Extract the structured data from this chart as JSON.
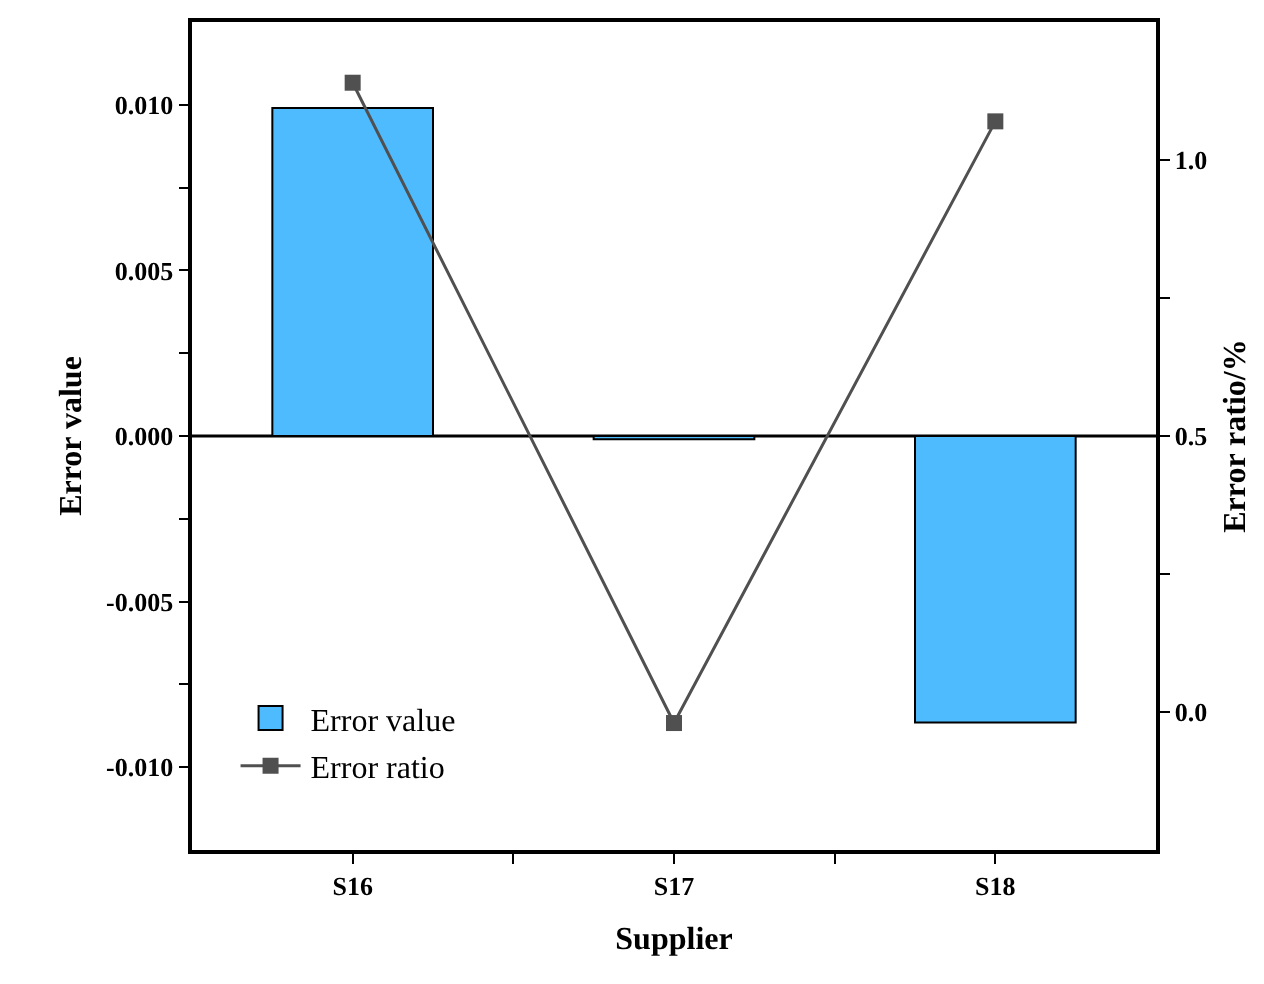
{
  "chart_data": {
    "type": "bar",
    "xlabel": "Supplier",
    "ylabel": "Error value",
    "y2label": "Error ratio/%",
    "categories": [
      "S16",
      "S17",
      "S18"
    ],
    "series": [
      {
        "name": "Error value",
        "color": "#4fbbff",
        "values": [
          0.0099,
          -0.0001,
          -0.00865
        ]
      },
      {
        "name": "Error ratio",
        "type": "line",
        "axis": "y2",
        "color": "#505050",
        "values": [
          1.14,
          -0.02,
          1.07
        ]
      }
    ],
    "ylim": [
      -0.0125,
      0.0125
    ],
    "yticks": [
      {
        "value": -0.01,
        "label": "-0.010"
      },
      {
        "value": -0.0075,
        "label": null
      },
      {
        "value": -0.005,
        "label": "-0.005"
      },
      {
        "value": -0.0025,
        "label": null
      },
      {
        "value": 0,
        "label": "0.000"
      },
      {
        "value": 0.0025,
        "label": null
      },
      {
        "value": 0.005,
        "label": "0.005"
      },
      {
        "value": 0.0075,
        "label": null
      },
      {
        "value": 0.01,
        "label": "0.010"
      }
    ],
    "y2lim": [
      -0.25,
      1.25
    ],
    "y2ticks": [
      {
        "value": 0,
        "label": "0.0"
      },
      {
        "value": 0.25,
        "label": null
      },
      {
        "value": 0.5,
        "label": "0.5"
      },
      {
        "value": 0.75,
        "label": null
      },
      {
        "value": 1,
        "label": "1.0"
      }
    ],
    "ref_lines": [
      {
        "axis": "y",
        "value": 0
      }
    ],
    "marker": "square",
    "line_style": "solid",
    "legend": "bottom left"
  }
}
